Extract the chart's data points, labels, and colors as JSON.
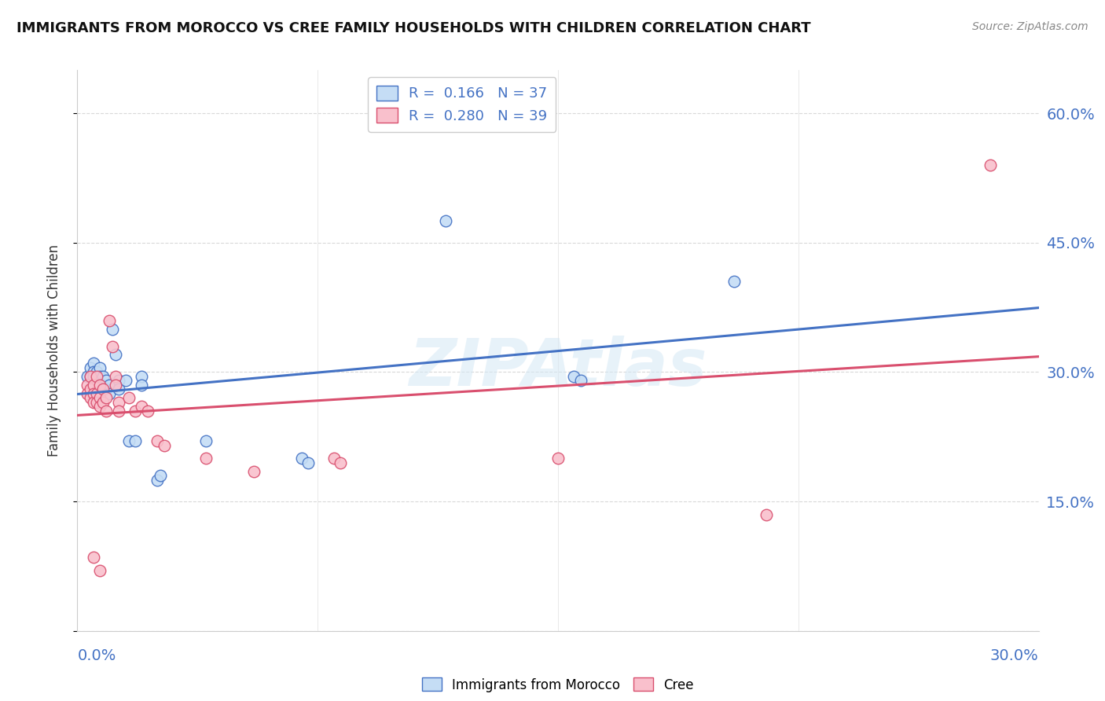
{
  "title": "IMMIGRANTS FROM MOROCCO VS CREE FAMILY HOUSEHOLDS WITH CHILDREN CORRELATION CHART",
  "source": "Source: ZipAtlas.com",
  "ylabel": "Family Households with Children",
  "y_ticks": [
    0.0,
    0.15,
    0.3,
    0.45,
    0.6
  ],
  "y_tick_labels": [
    "",
    "15.0%",
    "30.0%",
    "45.0%",
    "60.0%"
  ],
  "xlim": [
    0.0,
    0.3
  ],
  "ylim": [
    0.0,
    0.65
  ],
  "legend1_label": "R =  0.166   N = 37",
  "legend2_label": "R =  0.280   N = 39",
  "legend1_face": "#c5ddf5",
  "legend2_face": "#f9c0cc",
  "line1_color": "#4472C4",
  "line2_color": "#D94F6E",
  "watermark": "ZIPAtlas",
  "scatter_morocco": [
    [
      0.003,
      0.295
    ],
    [
      0.004,
      0.305
    ],
    [
      0.004,
      0.295
    ],
    [
      0.005,
      0.31
    ],
    [
      0.005,
      0.3
    ],
    [
      0.005,
      0.295
    ],
    [
      0.005,
      0.28
    ],
    [
      0.006,
      0.3
    ],
    [
      0.006,
      0.29
    ],
    [
      0.006,
      0.28
    ],
    [
      0.007,
      0.305
    ],
    [
      0.007,
      0.295
    ],
    [
      0.007,
      0.285
    ],
    [
      0.008,
      0.295
    ],
    [
      0.008,
      0.285
    ],
    [
      0.009,
      0.29
    ],
    [
      0.009,
      0.28
    ],
    [
      0.01,
      0.285
    ],
    [
      0.01,
      0.275
    ],
    [
      0.011,
      0.35
    ],
    [
      0.012,
      0.32
    ],
    [
      0.013,
      0.29
    ],
    [
      0.013,
      0.28
    ],
    [
      0.015,
      0.29
    ],
    [
      0.016,
      0.22
    ],
    [
      0.018,
      0.22
    ],
    [
      0.02,
      0.295
    ],
    [
      0.02,
      0.285
    ],
    [
      0.025,
      0.175
    ],
    [
      0.026,
      0.18
    ],
    [
      0.04,
      0.22
    ],
    [
      0.07,
      0.2
    ],
    [
      0.072,
      0.195
    ],
    [
      0.115,
      0.475
    ],
    [
      0.155,
      0.295
    ],
    [
      0.157,
      0.29
    ],
    [
      0.205,
      0.405
    ]
  ],
  "scatter_cree": [
    [
      0.003,
      0.285
    ],
    [
      0.003,
      0.275
    ],
    [
      0.004,
      0.295
    ],
    [
      0.004,
      0.28
    ],
    [
      0.004,
      0.27
    ],
    [
      0.005,
      0.285
    ],
    [
      0.005,
      0.275
    ],
    [
      0.005,
      0.265
    ],
    [
      0.006,
      0.295
    ],
    [
      0.006,
      0.275
    ],
    [
      0.006,
      0.265
    ],
    [
      0.007,
      0.285
    ],
    [
      0.007,
      0.27
    ],
    [
      0.007,
      0.26
    ],
    [
      0.008,
      0.28
    ],
    [
      0.008,
      0.265
    ],
    [
      0.009,
      0.27
    ],
    [
      0.009,
      0.255
    ],
    [
      0.01,
      0.36
    ],
    [
      0.011,
      0.33
    ],
    [
      0.012,
      0.295
    ],
    [
      0.012,
      0.285
    ],
    [
      0.013,
      0.265
    ],
    [
      0.013,
      0.255
    ],
    [
      0.016,
      0.27
    ],
    [
      0.018,
      0.255
    ],
    [
      0.02,
      0.26
    ],
    [
      0.022,
      0.255
    ],
    [
      0.025,
      0.22
    ],
    [
      0.027,
      0.215
    ],
    [
      0.04,
      0.2
    ],
    [
      0.055,
      0.185
    ],
    [
      0.08,
      0.2
    ],
    [
      0.082,
      0.195
    ],
    [
      0.15,
      0.2
    ],
    [
      0.215,
      0.135
    ],
    [
      0.285,
      0.54
    ],
    [
      0.005,
      0.085
    ],
    [
      0.007,
      0.07
    ]
  ],
  "background_color": "#ffffff",
  "grid_color": "#d0d0d0",
  "title_color": "#111111",
  "tick_label_color": "#4472C4"
}
